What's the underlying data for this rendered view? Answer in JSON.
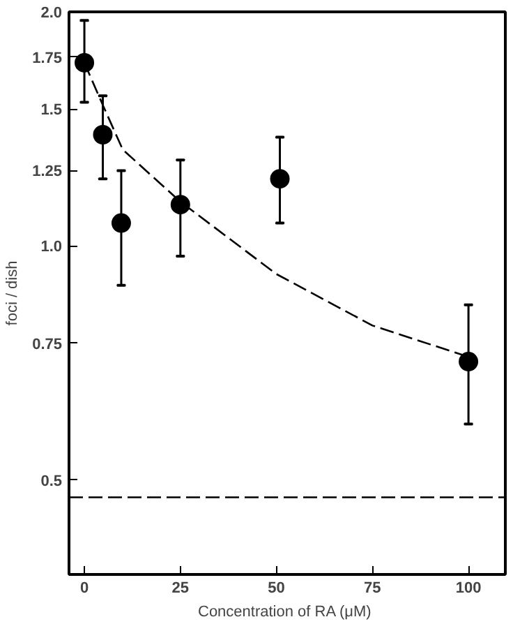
{
  "chart_data": {
    "type": "scatter",
    "xlabel": "Concentration of RA  (μM)",
    "ylabel": "foci / dish",
    "log": "y",
    "xlim": [
      -4,
      109.6
    ],
    "ylim": [
      0.378,
      2.0
    ],
    "xticks": [
      0,
      25,
      50,
      75,
      100
    ],
    "yticks": [
      0.5,
      0.75,
      {
        "value": 1.0,
        "label": "1.0"
      },
      1.25,
      1.5,
      1.75,
      {
        "value": 2.0,
        "label": "2.0"
      }
    ],
    "grid": false,
    "marker": "circle",
    "series": [
      {
        "color": "#000000",
        "x": [
          0,
          4.8,
          9.6,
          25,
          50.9,
          100
        ],
        "values": [
          1.72,
          1.39,
          1.07,
          1.13,
          1.22,
          0.71
        ],
        "errors": [
          [
            1.53,
            1.95
          ],
          [
            1.22,
            1.56
          ],
          [
            0.89,
            1.25
          ],
          [
            0.97,
            1.29
          ],
          [
            1.07,
            1.38
          ],
          [
            0.59,
            0.84
          ]
        ]
      },
      {
        "type": "line",
        "marker": "none",
        "line_style": "dashed",
        "color": "#000000",
        "x": [
          0,
          5,
          10,
          25,
          50,
          75,
          100
        ],
        "values": [
          1.72,
          1.51,
          1.33,
          1.14,
          0.92,
          0.79,
          0.72
        ]
      }
    ],
    "ref_lines": [
      {
        "axis": "y",
        "value": 0.475,
        "line_style": "dashed",
        "color": "#000000"
      }
    ]
  }
}
